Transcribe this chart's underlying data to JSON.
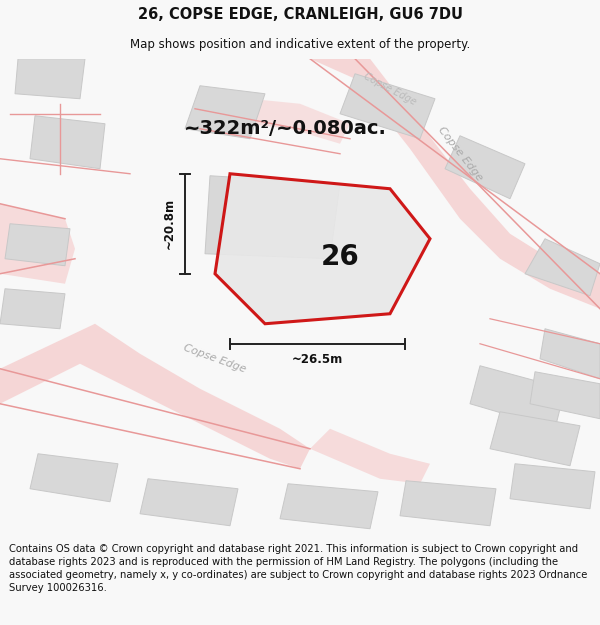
{
  "title": "26, COPSE EDGE, CRANLEIGH, GU6 7DU",
  "subtitle": "Map shows position and indicative extent of the property.",
  "footer": "Contains OS data © Crown copyright and database right 2021. This information is subject to Crown copyright and database rights 2023 and is reproduced with the permission of HM Land Registry. The polygons (including the associated geometry, namely x, y co-ordinates) are subject to Crown copyright and database rights 2023 Ordnance Survey 100026316.",
  "area_text": "~322m²/~0.080ac.",
  "label_26": "26",
  "dim_width": "~26.5m",
  "dim_height": "~20.8m",
  "road_label_bottom": "Copse Edge",
  "road_label_right": "Copse Edge",
  "road_label_top": "Copse Edge",
  "bg_color": "#f8f8f8",
  "map_bg": "#ffffff",
  "plot_color": "#cc0000",
  "building_color": "#d8d8d8",
  "building_edge": "#c8c8c8",
  "road_fill": "#f5c8c8",
  "road_line": "#e89898",
  "dim_color": "#222222",
  "title_fontsize": 10.5,
  "subtitle_fontsize": 8.5,
  "footer_fontsize": 7.2,
  "area_fontsize": 14,
  "label_fontsize": 20,
  "dim_fontsize": 8.5,
  "road_label_fontsize": 8
}
